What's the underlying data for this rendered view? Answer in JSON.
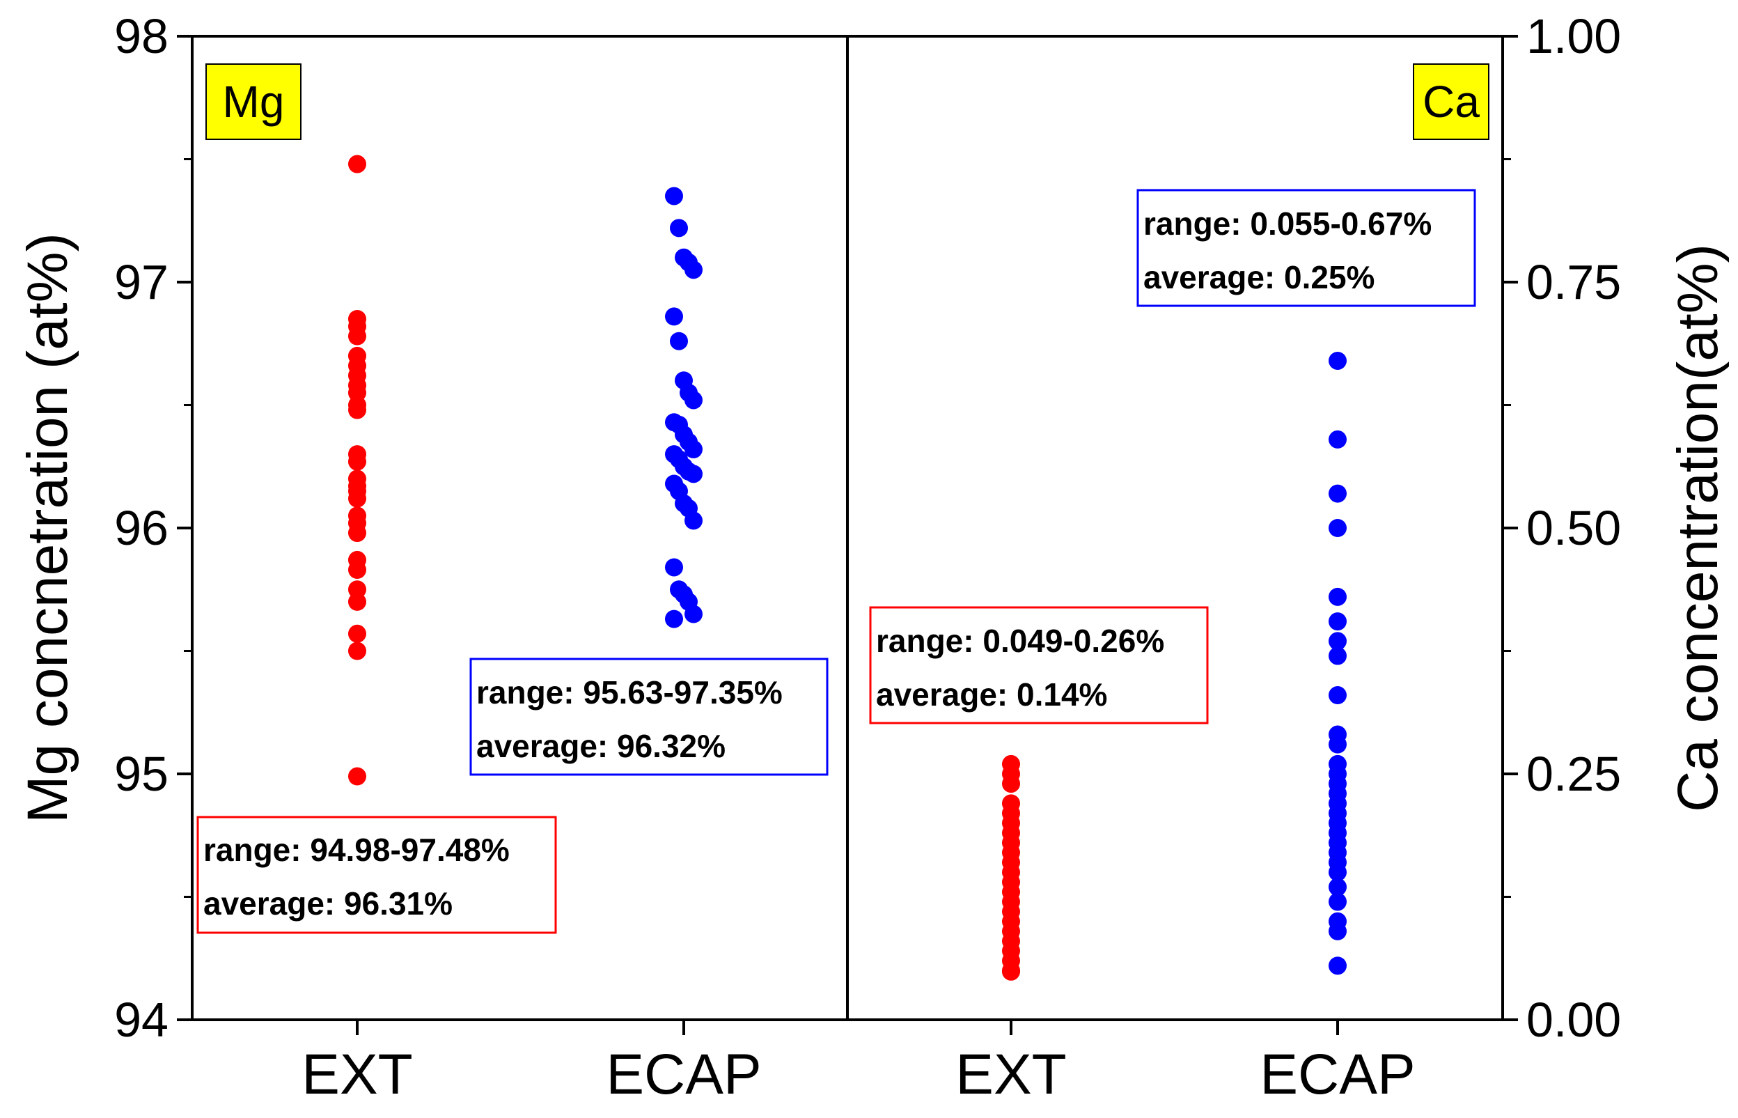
{
  "chart_data": {
    "type": "scatter",
    "categories": [
      "EXT",
      "ECAP",
      "EXT",
      "ECAP"
    ],
    "left_axis": {
      "label": "Mg concnetration (at%)",
      "ylim": [
        94,
        98
      ],
      "ticks": [
        "94",
        "95",
        "96",
        "97",
        "98"
      ],
      "tick_values": [
        94,
        95,
        96,
        97,
        98
      ]
    },
    "right_axis": {
      "label": "Ca concentration(at%)",
      "ylim": [
        0,
        1
      ],
      "ticks": [
        "0.00",
        "0.25",
        "0.50",
        "0.75",
        "1.00"
      ],
      "tick_values": [
        0,
        0.25,
        0.5,
        0.75,
        1.0
      ]
    },
    "panels": [
      {
        "tag": "Mg",
        "tag_color": "#ffff00"
      },
      {
        "tag": "Ca",
        "tag_color": "#ffff00"
      }
    ],
    "series": [
      {
        "name": "Mg EXT",
        "axis": "left",
        "category_index": 0,
        "color": "#ff0000",
        "values": [
          97.48,
          96.85,
          96.82,
          96.78,
          96.7,
          96.66,
          96.62,
          96.58,
          96.55,
          96.5,
          96.48,
          96.3,
          96.27,
          96.2,
          96.17,
          96.15,
          96.12,
          96.05,
          96.02,
          95.98,
          95.87,
          95.83,
          95.75,
          95.7,
          95.57,
          95.5,
          94.99
        ]
      },
      {
        "name": "Mg ECAP",
        "axis": "left",
        "category_index": 1,
        "color": "#0000ff",
        "values": [
          97.35,
          97.22,
          97.1,
          97.08,
          97.05,
          96.86,
          96.76,
          96.6,
          96.55,
          96.52,
          96.43,
          96.42,
          96.38,
          96.35,
          96.32,
          96.3,
          96.28,
          96.25,
          96.23,
          96.22,
          96.18,
          96.15,
          96.1,
          96.08,
          96.03,
          95.84,
          95.75,
          95.73,
          95.7,
          95.65,
          95.63
        ]
      },
      {
        "name": "Ca EXT",
        "axis": "right",
        "category_index": 2,
        "color": "#ff0000",
        "values": [
          0.26,
          0.25,
          0.24,
          0.22,
          0.21,
          0.2,
          0.19,
          0.18,
          0.17,
          0.16,
          0.15,
          0.14,
          0.13,
          0.12,
          0.11,
          0.1,
          0.09,
          0.08,
          0.07,
          0.06,
          0.05,
          0.049
        ]
      },
      {
        "name": "Ca ECAP",
        "axis": "right",
        "category_index": 3,
        "color": "#0000ff",
        "values": [
          0.67,
          0.59,
          0.535,
          0.5,
          0.43,
          0.405,
          0.385,
          0.37,
          0.33,
          0.29,
          0.28,
          0.26,
          0.25,
          0.24,
          0.23,
          0.22,
          0.21,
          0.2,
          0.19,
          0.18,
          0.17,
          0.16,
          0.15,
          0.135,
          0.12,
          0.1,
          0.09,
          0.055
        ]
      }
    ],
    "annotations": [
      {
        "color": "#ff0000",
        "range": "range: 94.98-97.48%",
        "average": "average: 96.31%"
      },
      {
        "color": "#0000ff",
        "range": "range: 95.63-97.35%",
        "average": "average: 96.32%"
      },
      {
        "color": "#ff0000",
        "range": "range: 0.049-0.26%",
        "average": "average: 0.14%"
      },
      {
        "color": "#0000ff",
        "range": "range: 0.055-0.67%",
        "average": "average: 0.25%"
      }
    ]
  }
}
